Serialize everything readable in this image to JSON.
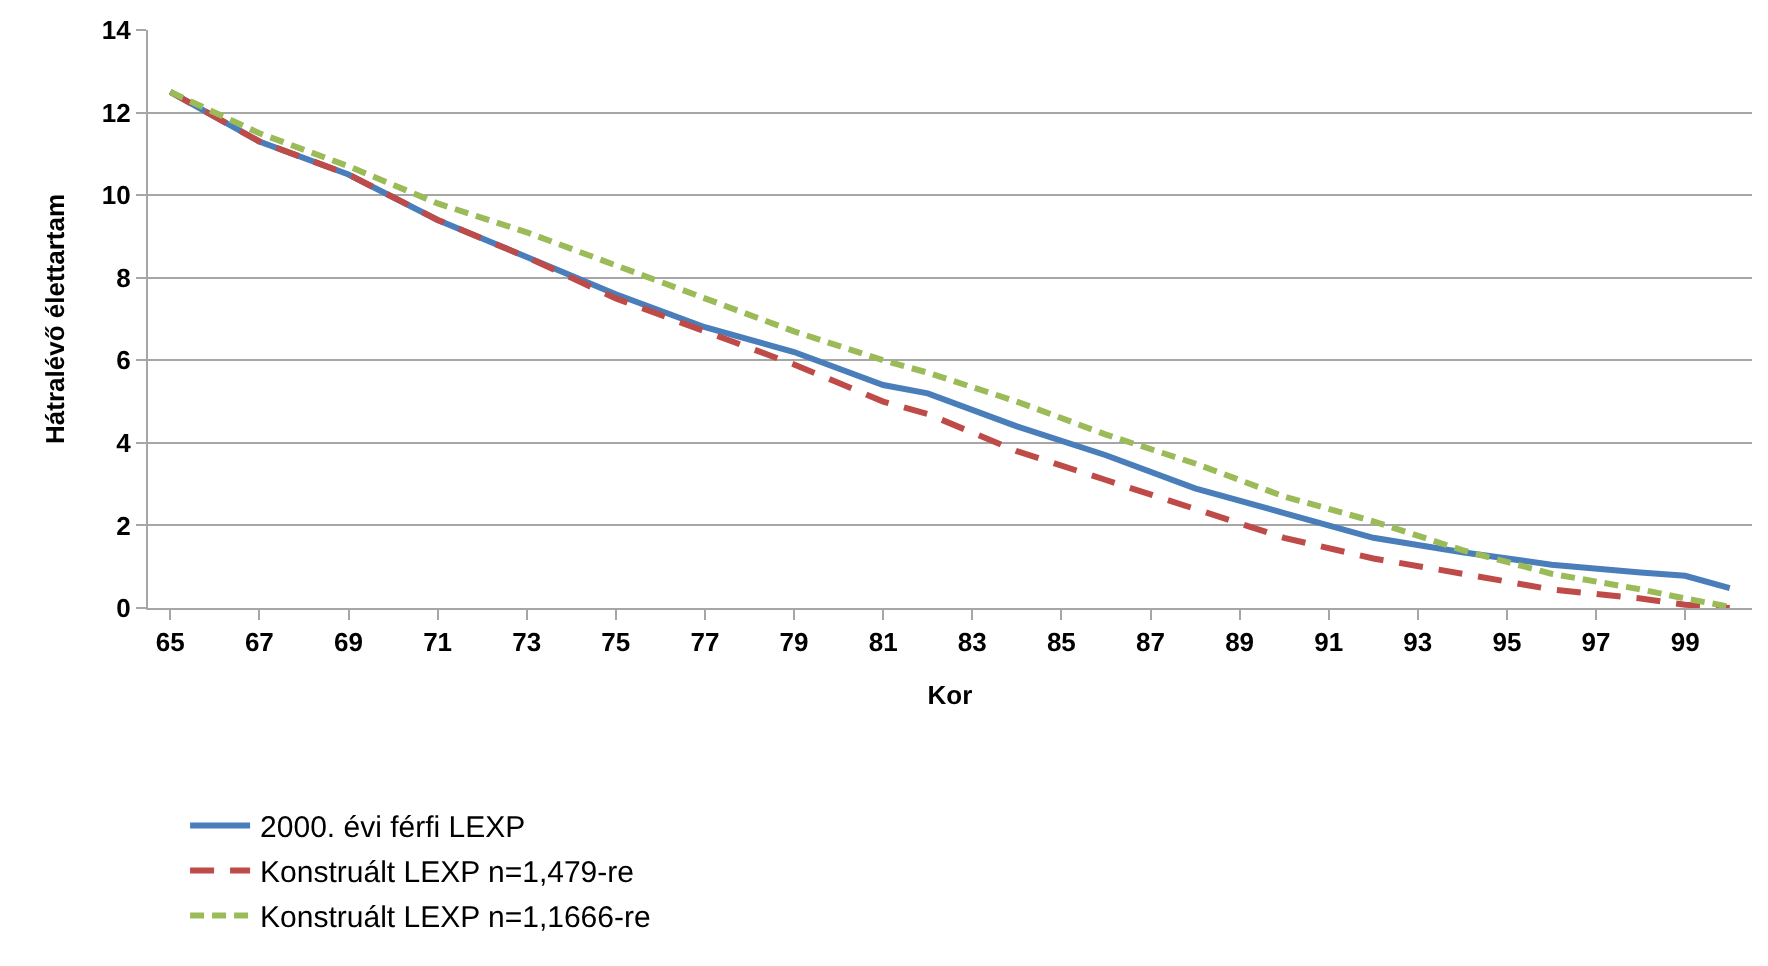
{
  "chart_data": {
    "type": "line",
    "xlabel": "Kor",
    "ylabel": "Hátralévő élettartam",
    "xlim": [
      64.5,
      100.5
    ],
    "xticks": [
      65,
      67,
      69,
      71,
      73,
      75,
      77,
      79,
      81,
      83,
      85,
      87,
      89,
      91,
      93,
      95,
      97,
      99
    ],
    "ylim": [
      0,
      14
    ],
    "yticks": [
      0,
      2,
      4,
      6,
      8,
      10,
      12,
      14
    ],
    "grid": "y",
    "legend": "bottom",
    "marker": "none",
    "series": [
      {
        "name": "2000. évi férfi LEXP",
        "color": "#4a7ebb",
        "line_style": "solid",
        "x": [
          65,
          67,
          69,
          71,
          73,
          75,
          77,
          79,
          81,
          82,
          84,
          86,
          88,
          90,
          92,
          94,
          96,
          98,
          99,
          100
        ],
        "values": [
          12.5,
          11.3,
          10.5,
          9.4,
          8.5,
          7.6,
          6.8,
          6.2,
          5.4,
          5.2,
          4.4,
          3.7,
          2.9,
          2.3,
          1.7,
          1.35,
          1.05,
          0.86,
          0.78,
          0.48
        ]
      },
      {
        "name": "Konstruált LEXP n=1,479-re",
        "color": "#be4b48",
        "line_style": "dashed",
        "x": [
          65,
          67,
          69,
          71,
          73,
          75,
          77,
          79,
          81,
          82,
          84,
          86,
          88,
          90,
          92,
          94,
          96,
          98,
          99,
          100
        ],
        "values": [
          12.5,
          11.3,
          10.5,
          9.4,
          8.5,
          7.5,
          6.7,
          5.9,
          5.0,
          4.7,
          3.8,
          3.1,
          2.4,
          1.7,
          1.2,
          0.83,
          0.45,
          0.23,
          0.08,
          0.0
        ]
      },
      {
        "name": "Konstruált LEXP n=1,1666-re",
        "color": "#9bbb59",
        "line_style": "dashed",
        "x": [
          65,
          67,
          69,
          71,
          73,
          75,
          77,
          79,
          81,
          82,
          84,
          86,
          88,
          90,
          92,
          94,
          96,
          98,
          99,
          100
        ],
        "values": [
          12.5,
          11.5,
          10.7,
          9.8,
          9.1,
          8.3,
          7.5,
          6.7,
          6.0,
          5.7,
          5.0,
          4.2,
          3.5,
          2.7,
          2.1,
          1.4,
          0.83,
          0.45,
          0.23,
          0.03
        ]
      }
    ]
  }
}
